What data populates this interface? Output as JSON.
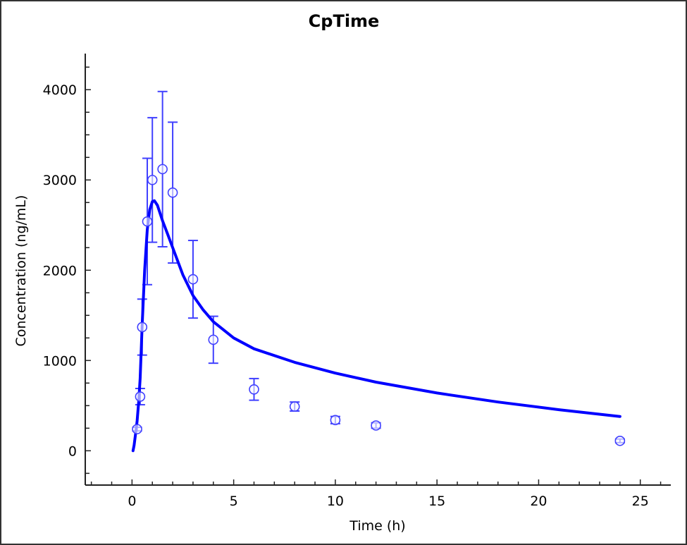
{
  "chart_data": {
    "type": "scatter",
    "title": "CpTime",
    "xlabel": "Time (h)",
    "ylabel": "Concentration (ng/mL)",
    "xlim": [
      -2.3,
      26.5
    ],
    "ylim": [
      -380,
      4400
    ],
    "xticks": [
      0,
      5,
      10,
      15,
      20,
      25
    ],
    "yticks": [
      0,
      1000,
      2000,
      3000,
      4000
    ],
    "grid": false,
    "color": "#0000ff",
    "observed": {
      "marker": "open-circle",
      "points": [
        {
          "x": 0.25,
          "y": 240,
          "lo": 220,
          "hi": 260
        },
        {
          "x": 0.4,
          "y": 600,
          "lo": 510,
          "hi": 690
        },
        {
          "x": 0.5,
          "y": 1370,
          "lo": 1060,
          "hi": 1680
        },
        {
          "x": 0.75,
          "y": 2540,
          "lo": 1840,
          "hi": 3240
        },
        {
          "x": 1,
          "y": 3000,
          "lo": 2310,
          "hi": 3690
        },
        {
          "x": 1.5,
          "y": 3120,
          "lo": 2260,
          "hi": 3980
        },
        {
          "x": 2,
          "y": 2860,
          "lo": 2080,
          "hi": 3640
        },
        {
          "x": 3,
          "y": 1900,
          "lo": 1470,
          "hi": 2330
        },
        {
          "x": 4,
          "y": 1230,
          "lo": 970,
          "hi": 1490
        },
        {
          "x": 6,
          "y": 680,
          "lo": 560,
          "hi": 800
        },
        {
          "x": 8,
          "y": 490,
          "lo": 440,
          "hi": 540
        },
        {
          "x": 10,
          "y": 340,
          "lo": 300,
          "hi": 380
        },
        {
          "x": 12,
          "y": 280,
          "lo": 250,
          "hi": 310
        },
        {
          "x": 24,
          "y": 110,
          "lo": 90,
          "hi": 130
        }
      ]
    },
    "predicted": {
      "style": "line",
      "x": [
        0.05,
        0.1,
        0.18,
        0.25,
        0.33,
        0.4,
        0.5,
        0.62,
        0.75,
        0.87,
        1.0,
        1.1,
        1.25,
        1.5,
        1.75,
        2.0,
        2.5,
        3.0,
        3.5,
        4.0,
        5.0,
        6.0,
        8.0,
        10.0,
        12.0,
        15.0,
        18.0,
        21.0,
        24.0
      ],
      "y": [
        0,
        60,
        200,
        330,
        550,
        800,
        1400,
        2000,
        2450,
        2670,
        2760,
        2770,
        2720,
        2550,
        2400,
        2250,
        1950,
        1720,
        1560,
        1430,
        1250,
        1130,
        980,
        860,
        760,
        640,
        540,
        455,
        380
      ]
    }
  }
}
